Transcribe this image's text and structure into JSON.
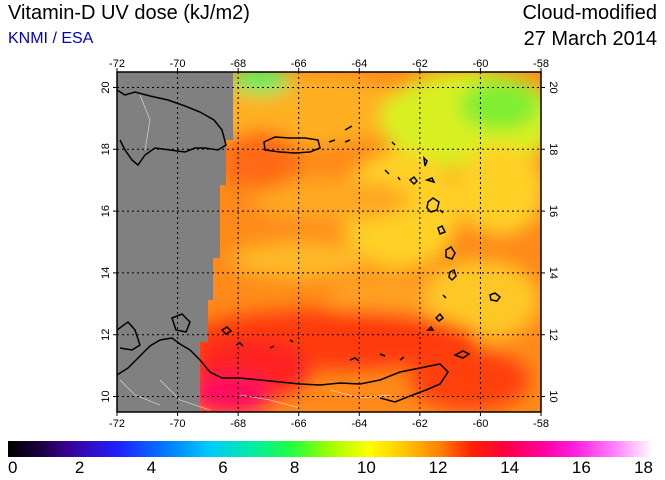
{
  "header": {
    "title": "Vitamin-D UV dose (kJ/m2)",
    "credit": "KNMI / ESA",
    "mode": "Cloud-modified",
    "date": "27 March 2014"
  },
  "map": {
    "longitude_ticks": [
      "-72",
      "-70",
      "-68",
      "-66",
      "-64",
      "-62",
      "-60",
      "-58"
    ],
    "latitude_ticks": [
      "10",
      "12",
      "14",
      "16",
      "18",
      "20"
    ],
    "land_mask_color": "#808080",
    "coastline_color": "#000000"
  },
  "colorbar": {
    "labels": [
      "0",
      "2",
      "4",
      "6",
      "8",
      "10",
      "12",
      "14",
      "16",
      "18"
    ],
    "min": 0,
    "max": 18
  }
}
